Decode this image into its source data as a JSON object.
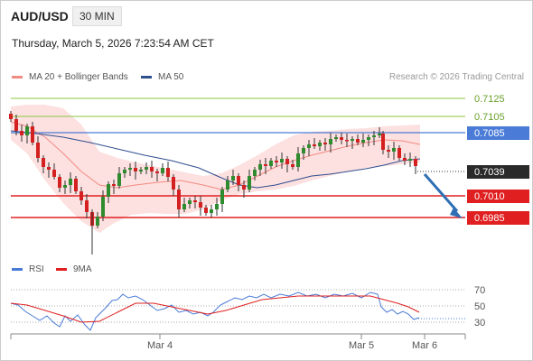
{
  "header": {
    "symbol": "AUD/USD",
    "timeframe": "30 MIN",
    "datetime": "Thursday, March 5, 2026 7:23:54 AM CET"
  },
  "legend_main": [
    {
      "label": "MA 20 + Bollinger Bands",
      "color": "#f28b82"
    },
    {
      "label": "MA 50",
      "color": "#2f4f8f"
    }
  ],
  "legend_rsi": [
    {
      "label": "RSI",
      "color": "#4a7bd6"
    },
    {
      "label": "9MA",
      "color": "#e02020"
    }
  ],
  "credit": "Research © 2026 Trading Central",
  "levels": [
    {
      "value": "0.7125",
      "kind": "resistance-green"
    },
    {
      "value": "0.7105",
      "kind": "resistance-green"
    },
    {
      "value": "0.7085",
      "kind": "pivot-blue"
    },
    {
      "value": "0.7039",
      "kind": "last-price"
    },
    {
      "value": "0.7010",
      "kind": "support-red"
    },
    {
      "value": "0.6985",
      "kind": "support-red"
    }
  ],
  "rsi_ticks": [
    "70",
    "50",
    "30"
  ],
  "x_ticks": [
    "Mar 4",
    "Mar 5",
    "Mar 6"
  ],
  "colors": {
    "green": "#8cc63f",
    "blue": "#4a7bd6",
    "red": "#e02020",
    "band": "#fde0e0",
    "candle_up": "#2e8b2e",
    "candle_down": "#d42020",
    "arrow": "#2f6fb4"
  }
}
